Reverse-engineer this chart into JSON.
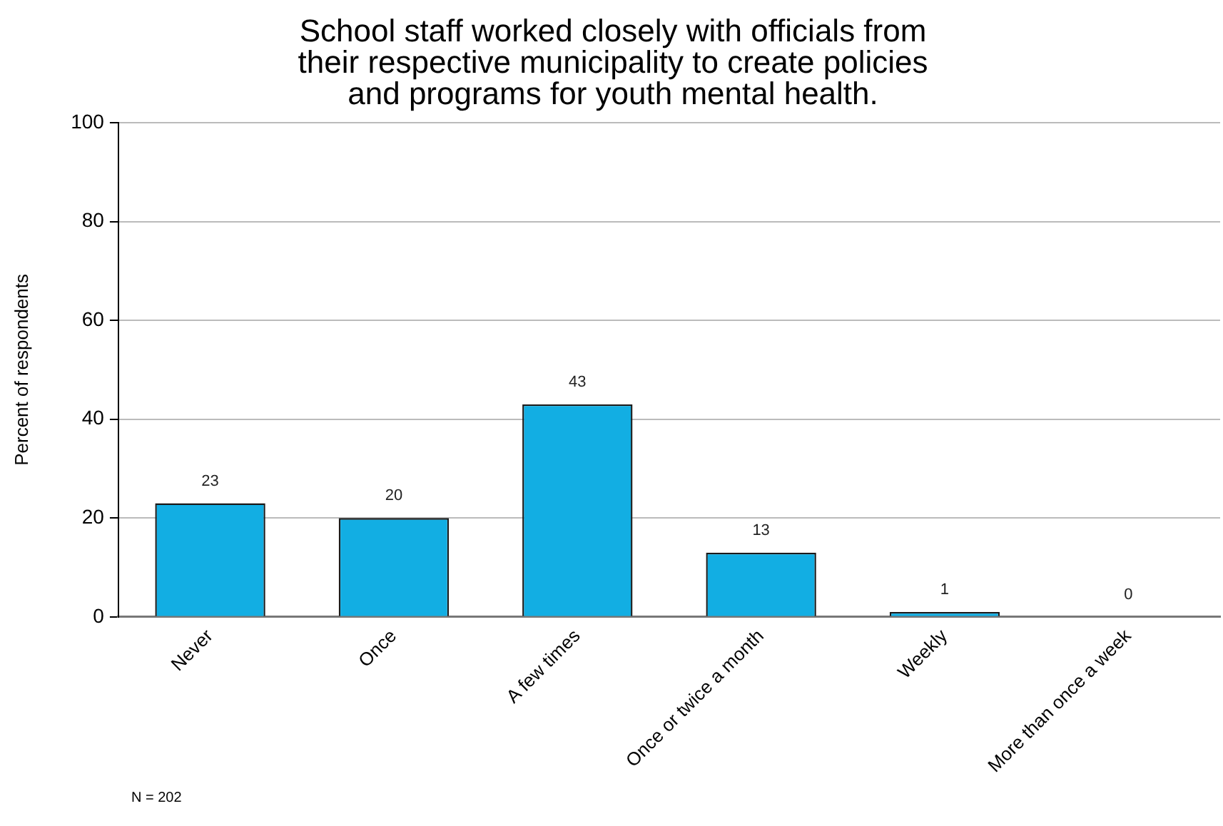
{
  "chart_data": {
    "type": "bar",
    "title": "School staff worked closely with officials from\ntheir respective municipality to create policies\nand programs for youth mental health.",
    "ylabel": "Percent of respondents",
    "categories": [
      "Never",
      "Once",
      "A few times",
      "Once or twice a month",
      "Weekly",
      "More than once a week"
    ],
    "values": [
      23,
      20,
      43,
      13,
      1,
      0
    ],
    "color": "#12aee3",
    "ylim": [
      0,
      100
    ],
    "yticks": [
      0,
      20,
      40,
      60,
      80,
      100
    ],
    "grid": "y",
    "data_labels": true,
    "annotations": [
      "N = 202"
    ]
  }
}
